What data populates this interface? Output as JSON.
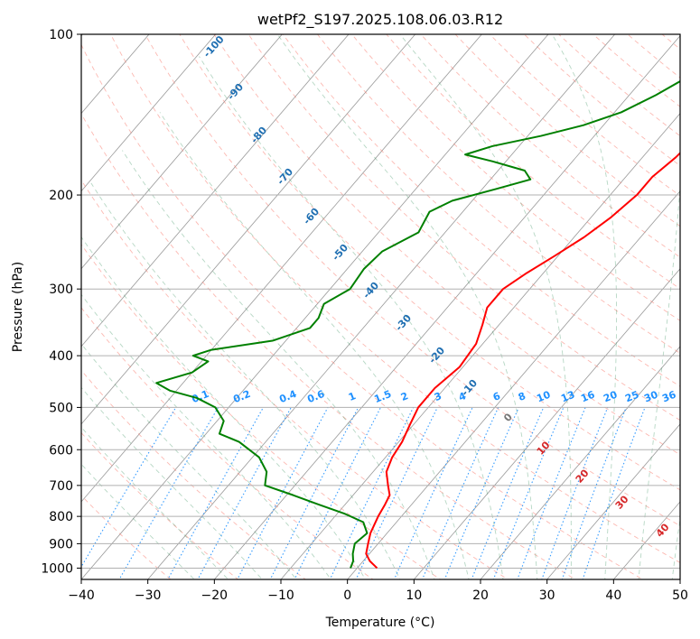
{
  "chart_data": {
    "type": "line",
    "title": "wetPf2_S197.2025.108.06.03.R12",
    "xlabel": "Temperature (°C)",
    "ylabel": "Pressure (hPa)",
    "xlim": [
      -40,
      50
    ],
    "ylim": [
      1050,
      100
    ],
    "y_scale": "log",
    "x_ticks": [
      -40,
      -30,
      -20,
      -10,
      0,
      10,
      20,
      30,
      40,
      50
    ],
    "y_ticks": [
      1000,
      900,
      800,
      700,
      600,
      500,
      400,
      300,
      200,
      100
    ],
    "grid": true,
    "skew": "Skew-T log-P",
    "series": [
      {
        "role": "temperature",
        "color": "#ff0000",
        "points": [
          {
            "p": 1000,
            "t": 3.0
          },
          {
            "p": 970,
            "t": 1.0
          },
          {
            "p": 940,
            "t": -0.5
          },
          {
            "p": 900,
            "t": -1.5
          },
          {
            "p": 860,
            "t": -2.5
          },
          {
            "p": 800,
            "t": -3.5
          },
          {
            "p": 760,
            "t": -4.0
          },
          {
            "p": 730,
            "t": -4.5
          },
          {
            "p": 700,
            "t": -6.0
          },
          {
            "p": 660,
            "t": -8.0
          },
          {
            "p": 620,
            "t": -9.0
          },
          {
            "p": 580,
            "t": -9.5
          },
          {
            "p": 540,
            "t": -10.5
          },
          {
            "p": 500,
            "t": -11.5
          },
          {
            "p": 460,
            "t": -11.5
          },
          {
            "p": 420,
            "t": -10.5
          },
          {
            "p": 380,
            "t": -11.0
          },
          {
            "p": 350,
            "t": -12.5
          },
          {
            "p": 325,
            "t": -14.0
          },
          {
            "p": 300,
            "t": -14.0
          },
          {
            "p": 280,
            "t": -12.5
          },
          {
            "p": 260,
            "t": -10.5
          },
          {
            "p": 240,
            "t": -8.5
          },
          {
            "p": 220,
            "t": -7.0
          },
          {
            "p": 200,
            "t": -6.0
          },
          {
            "p": 185,
            "t": -6.0
          },
          {
            "p": 170,
            "t": -5.0
          },
          {
            "p": 155,
            "t": -4.5
          },
          {
            "p": 140,
            "t": -3.0
          },
          {
            "p": 125,
            "t": -2.0
          },
          {
            "p": 112,
            "t": 0.0
          },
          {
            "p": 100,
            "t": 3.0
          }
        ]
      },
      {
        "role": "dewpoint",
        "color": "#008000",
        "points": [
          {
            "p": 1000,
            "t": -1.0
          },
          {
            "p": 970,
            "t": -1.5
          },
          {
            "p": 940,
            "t": -2.5
          },
          {
            "p": 900,
            "t": -3.5
          },
          {
            "p": 860,
            "t": -3.0
          },
          {
            "p": 820,
            "t": -5.0
          },
          {
            "p": 790,
            "t": -9.0
          },
          {
            "p": 760,
            "t": -14.0
          },
          {
            "p": 730,
            "t": -19.0
          },
          {
            "p": 700,
            "t": -24.5
          },
          {
            "p": 660,
            "t": -26.0
          },
          {
            "p": 620,
            "t": -29.0
          },
          {
            "p": 580,
            "t": -34.0
          },
          {
            "p": 560,
            "t": -38.0
          },
          {
            "p": 530,
            "t": -39.0
          },
          {
            "p": 500,
            "t": -42.0
          },
          {
            "p": 480,
            "t": -46.0
          },
          {
            "p": 465,
            "t": -51.0
          },
          {
            "p": 450,
            "t": -54.0
          },
          {
            "p": 430,
            "t": -50.0
          },
          {
            "p": 410,
            "t": -49.0
          },
          {
            "p": 400,
            "t": -52.0
          },
          {
            "p": 390,
            "t": -50.0
          },
          {
            "p": 375,
            "t": -42.0
          },
          {
            "p": 355,
            "t": -38.0
          },
          {
            "p": 340,
            "t": -38.0
          },
          {
            "p": 320,
            "t": -39.0
          },
          {
            "p": 300,
            "t": -37.0
          },
          {
            "p": 275,
            "t": -37.5
          },
          {
            "p": 255,
            "t": -37.0
          },
          {
            "p": 235,
            "t": -34.0
          },
          {
            "p": 215,
            "t": -35.0
          },
          {
            "p": 205,
            "t": -33.0
          },
          {
            "p": 195,
            "t": -28.0
          },
          {
            "p": 187,
            "t": -24.0
          },
          {
            "p": 180,
            "t": -26.0
          },
          {
            "p": 173,
            "t": -32.0
          },
          {
            "p": 168,
            "t": -37.0
          },
          {
            "p": 162,
            "t": -34.0
          },
          {
            "p": 155,
            "t": -28.0
          },
          {
            "p": 148,
            "t": -23.0
          },
          {
            "p": 140,
            "t": -19.0
          },
          {
            "p": 130,
            "t": -16.0
          },
          {
            "p": 120,
            "t": -13.5
          },
          {
            "p": 112,
            "t": -11.5
          },
          {
            "p": 106,
            "t": -9.0
          },
          {
            "p": 100,
            "t": -6.0
          }
        ]
      }
    ],
    "dry_adiabat_labels": [
      "-100",
      "-90",
      "-80",
      "-70",
      "-60",
      "-50",
      "-40",
      "-30",
      "-20",
      "-10"
    ],
    "moist_adiabat_labels": [
      "0",
      "10",
      "20",
      "30",
      "40"
    ],
    "mixing_ratio_labels": [
      "0.1",
      "0.2",
      "0.4",
      "0.6",
      "1",
      "1.5",
      "2",
      "3",
      "4",
      "6",
      "8",
      "10",
      "13",
      "16",
      "20",
      "25",
      "30",
      "36"
    ],
    "colors": {
      "temperature": "#ff0000",
      "dewpoint": "#008000",
      "dry_adiabat": "#fa8072",
      "moist_adiabat": "#2e8b57",
      "mixing_ratio": "#1e90ff",
      "isotherm": "#999999",
      "dry_label": "#1f6fb2",
      "moist_label": "#d62728",
      "zero_label": "#777777"
    }
  }
}
